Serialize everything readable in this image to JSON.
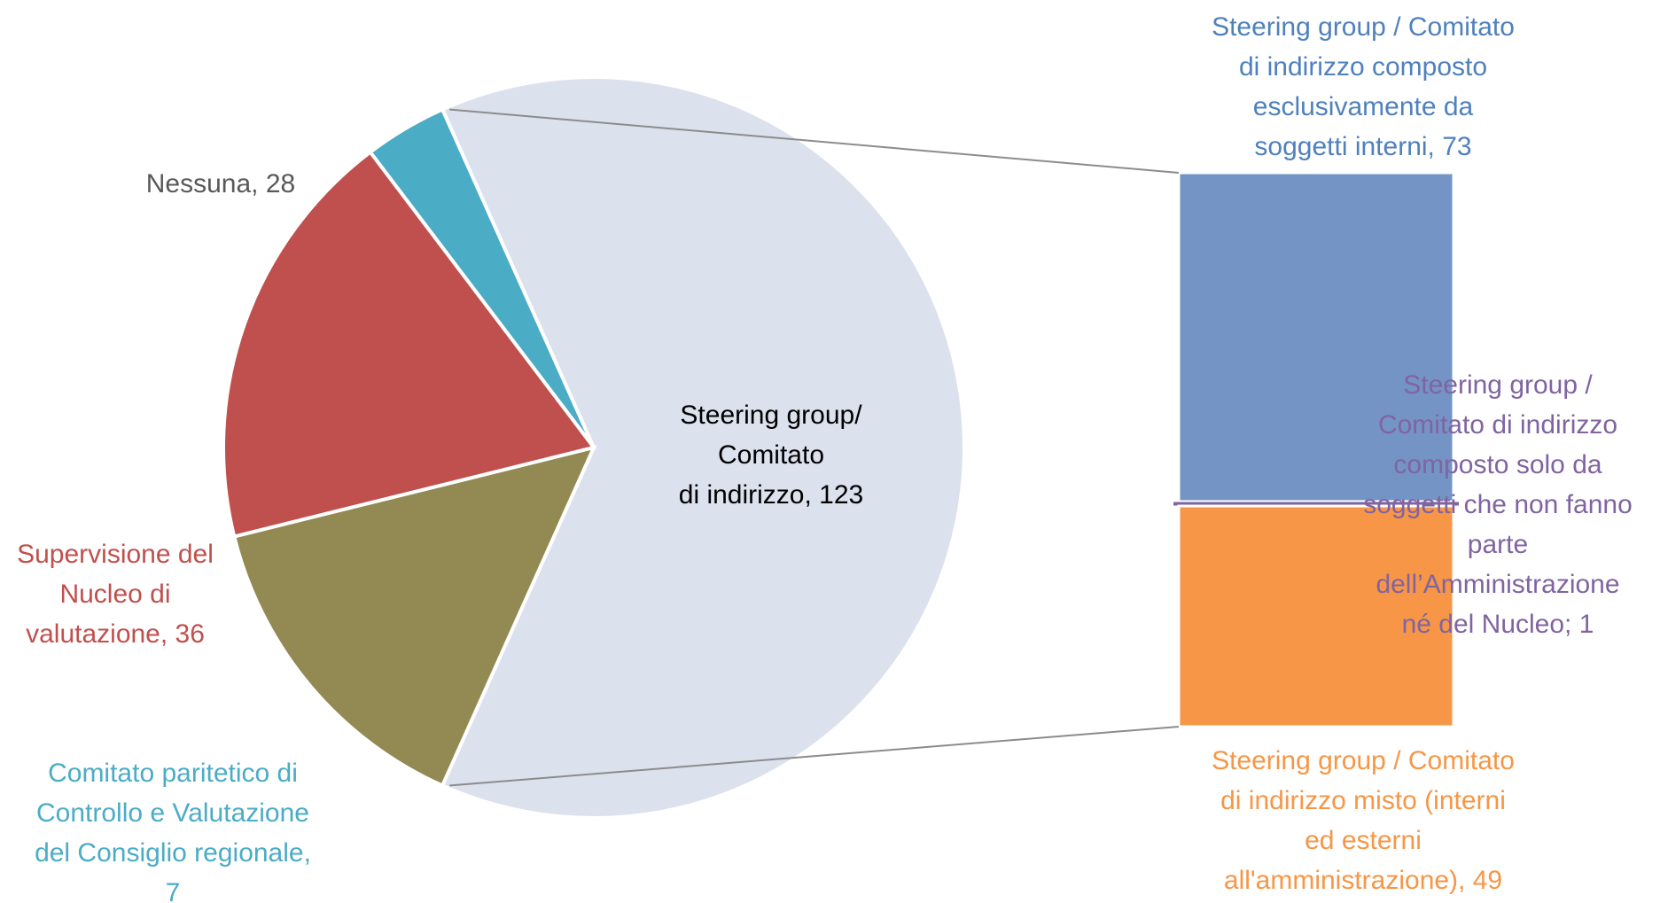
{
  "chart_data": {
    "type": "bar-of-pie",
    "pie": {
      "slices": [
        {
          "label": "Steering group/ Comitato di indirizzo",
          "value": 123,
          "color": "#DCE1EE",
          "label_lines": [
            "Steering group/",
            "Comitato",
            "di indirizzo, 123"
          ],
          "label_color": "#000000"
        },
        {
          "label": "Comitato paritetico di Controllo e Valutazione del Consiglio regionale",
          "value": 7,
          "color": "#4BACC6",
          "label_lines": [
            "Comitato paritetico di",
            "Controllo e Valutazione",
            "del Consiglio regionale,",
            "7"
          ],
          "label_color": "#4BACC6"
        },
        {
          "label": "Supervisione del Nucleo di valutazione",
          "value": 36,
          "color": "#C0504D",
          "label_lines": [
            "Supervisione del",
            "Nucleo di",
            "valutazione, 36"
          ],
          "label_color": "#C0504D"
        },
        {
          "label": "Nessuna",
          "value": 28,
          "color": "#938953",
          "label_lines": [
            "Nessuna, 28"
          ],
          "label_color": "#595959"
        }
      ]
    },
    "bar": {
      "segments": [
        {
          "label": "Steering group / Comitato di indirizzo composto esclusivamente da soggetti interni",
          "value": 73,
          "color": "#7394C5",
          "label_lines": [
            "Steering group / Comitato",
            "di indirizzo composto",
            "esclusivamente da",
            "soggetti interni, 73"
          ],
          "label_color": "#4F81BD"
        },
        {
          "label": "Steering group / Comitato di indirizzo composto solo da soggetti che non fanno parte dell’Amministrazione né del Nucleo",
          "value": 1,
          "color": "#8064A2",
          "label_lines": [
            "Steering group /",
            "Comitato di indirizzo",
            "composto solo da",
            "soggetti che non fanno",
            "parte",
            "dell’Amministrazione",
            "né del Nucleo; 1"
          ],
          "label_color": "#8064A2"
        },
        {
          "label": "Steering group / Comitato di indirizzo misto (interni ed esterni all'amministrazione)",
          "value": 49,
          "color": "#F79646",
          "label_lines": [
            "Steering group / Comitato",
            "di indirizzo misto (interni",
            "ed esterni",
            "all'amministrazione), 49"
          ],
          "label_color": "#F79646"
        }
      ]
    }
  }
}
